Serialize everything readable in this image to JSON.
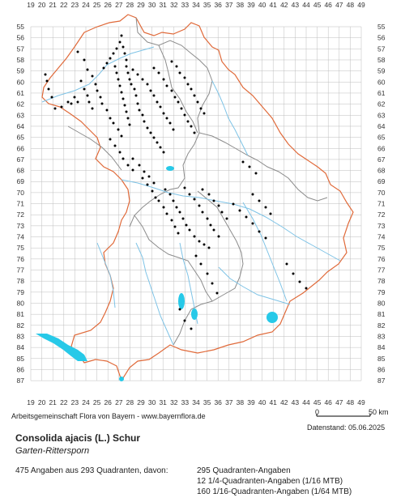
{
  "map": {
    "x_ticks": [
      "19",
      "20",
      "21",
      "22",
      "23",
      "24",
      "25",
      "26",
      "27",
      "28",
      "29",
      "30",
      "31",
      "32",
      "33",
      "34",
      "35",
      "36",
      "37",
      "38",
      "39",
      "40",
      "41",
      "42",
      "43",
      "44",
      "45",
      "46",
      "47",
      "48",
      "49"
    ],
    "y_ticks": [
      "55",
      "56",
      "57",
      "58",
      "59",
      "60",
      "61",
      "62",
      "63",
      "64",
      "65",
      "66",
      "67",
      "68",
      "69",
      "70",
      "71",
      "72",
      "73",
      "74",
      "75",
      "76",
      "77",
      "78",
      "79",
      "80",
      "81",
      "82",
      "83",
      "84",
      "85",
      "86",
      "87"
    ],
    "colors": {
      "grid": "#bdbdbd",
      "border": "#e06a3a",
      "region_border": "#8c8c8c",
      "river": "#7ec3e6",
      "lake": "#27c9e8",
      "marker": "#000000"
    }
  },
  "footer": {
    "credit": "Arbeitsgemeinschaft Flora von Bayern - www.bayernflora.de",
    "scale_start": "0",
    "scale_end": "50 km",
    "date": "Datenstand: 05.06.2025",
    "species": "Consolida ajacis (L.) Schur",
    "common_name": "Garten-Rittersporn",
    "summary": "475 Angaben aus 293 Quadranten, davon:",
    "count_quadrant": "295 Quadranten-Angaben",
    "count_quarter": "12 1/4-Quadranten-Angaben (1/16 MTB)",
    "count_sixteenth": "160 1/16-Quadranten-Angaben (1/64 MTB)"
  }
}
